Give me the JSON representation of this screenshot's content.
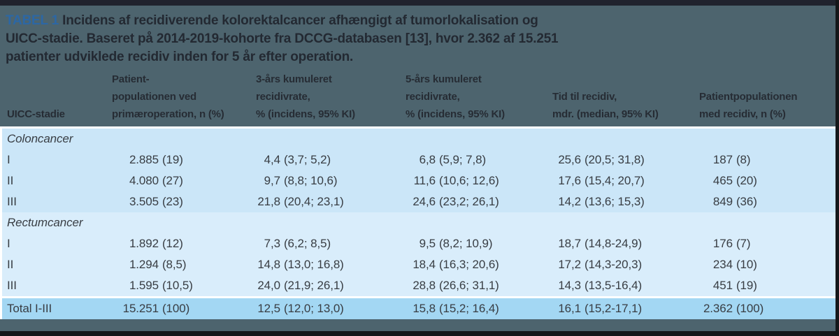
{
  "title": {
    "label": "TABEL 1",
    "lines": [
      "Incidens af recidiverende kolorektalcancer afhængigt af tumorlokalisation og",
      "UICC-stadie. Baseret på 2014-2019-kohorte fra DCCG-databasen [13], hvor 2.362 af 15.251",
      "patienter udviklede recidiv inden for 5 år efter operation."
    ]
  },
  "colors": {
    "top_bar": "#20232e",
    "header_band": "#4d646e",
    "section1_bg": "#cbe6f8",
    "section2_bg": "#d9edfb",
    "total_bg": "#a3d7f3",
    "footer_bar": "#4d646e",
    "edge_black": "#15171a",
    "accent_blue": "#2c67a5",
    "title_text": "#232932",
    "header_text": "#262c34",
    "body_text": "#383d43"
  },
  "chart_data": {
    "type": "table",
    "caption": "TABEL 1 Incidens af recidiverende kolorektalcancer afhængigt af tumorlokalisation og UICC-stadie. Baseret på 2014-2019-kohorte fra DCCG-databasen [13], hvor 2.362 af 15.251 patienter udviklede recidiv inden for 5 år efter operation.",
    "columns": [
      {
        "id": "stage",
        "lines": [
          "UICC-stadie"
        ]
      },
      {
        "id": "population_primary",
        "lines": [
          "Patient-",
          "populationen ved",
          "primæroperation, n (%)"
        ]
      },
      {
        "id": "recurrence_3y",
        "lines": [
          "3-års kumuleret",
          "recidivrate,",
          "% (incidens, 95% KI)"
        ]
      },
      {
        "id": "recurrence_5y",
        "lines": [
          "5-års kumuleret",
          "recidivrate,",
          "% (incidens, 95% KI)"
        ]
      },
      {
        "id": "time_to_recurrence",
        "lines": [
          "Tid til recidiv,",
          "mdr. (median, 95% KI)"
        ]
      },
      {
        "id": "population_recurrence",
        "lines": [
          "Patientpopulationen",
          "med recidiv, n (%)"
        ]
      }
    ],
    "sections": [
      {
        "label": "Coloncancer",
        "rows": [
          {
            "stage": "I",
            "values": [
              "2.885 (19)",
              "4,4 (3,7; 5,2)",
              "6,8 (5,9; 7,8)",
              "25,6 (20,5; 31,8)",
              "187 (8)"
            ]
          },
          {
            "stage": "II",
            "values": [
              "4.080 (27)",
              "9,7 (8,8; 10,6)",
              "11,6 (10,6; 12,6)",
              "17,6 (15,4; 20,7)",
              "465 (20)"
            ]
          },
          {
            "stage": "III",
            "values": [
              "3.505 (23)",
              "21,8 (20,4; 23,1)",
              "24,6 (23,2; 26,1)",
              "14,2 (13,6; 15,3)",
              "849 (36)"
            ]
          }
        ]
      },
      {
        "label": "Rectumcancer",
        "rows": [
          {
            "stage": "I",
            "values": [
              "1.892 (12)",
              "7,3 (6,2; 8,5)",
              "9,5 (8,2; 10,9)",
              "18,7 (14,8-24,9)",
              "176 (7)"
            ]
          },
          {
            "stage": "II",
            "values": [
              "1.294 (8,5)",
              "14,8 (13,0; 16,8)",
              "18,4 (16,3; 20,6)",
              "17,2 (14,3-20,3)",
              "234 (10)"
            ]
          },
          {
            "stage": "III",
            "values": [
              "1.595 (10,5)",
              "24,0 (21,9; 26,1)",
              "28,8 (26,6; 31,1)",
              "14,3 (13,5-16,4)",
              "451 (19)"
            ]
          }
        ]
      }
    ],
    "total": {
      "stage": "Total I-III",
      "values": [
        "15.251 (100)",
        "12,5 (12,0; 13,0)",
        "15,8 (15,2; 16,4)",
        "16,1 (15,2-17,1)",
        "2.362 (100)"
      ]
    }
  }
}
